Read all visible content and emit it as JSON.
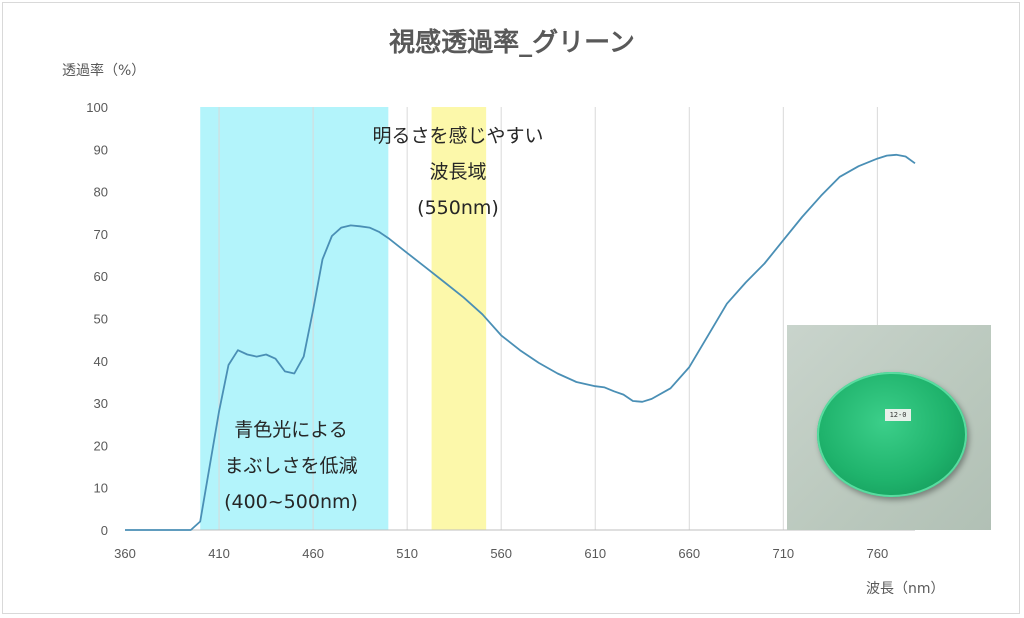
{
  "chart_data": {
    "type": "line",
    "title": "視感透過率_グリーン",
    "ylabel": "透過率（%）",
    "xlabel": "波長（nm）",
    "xlim": [
      360,
      780
    ],
    "ylim": [
      0,
      100
    ],
    "x_ticks": [
      360,
      410,
      460,
      510,
      560,
      610,
      660,
      710,
      760
    ],
    "y_ticks": [
      0,
      10,
      20,
      30,
      40,
      50,
      60,
      70,
      80,
      90,
      100
    ],
    "grid": "vertical",
    "series": [
      {
        "color": "#4a8fb5",
        "x": [
          360,
          370,
          380,
          390,
          395,
          400,
          405,
          410,
          415,
          420,
          425,
          430,
          435,
          440,
          445,
          450,
          455,
          460,
          465,
          470,
          475,
          480,
          485,
          490,
          495,
          500,
          510,
          520,
          530,
          540,
          550,
          560,
          570,
          580,
          590,
          600,
          610,
          615,
          620,
          625,
          630,
          635,
          640,
          650,
          660,
          670,
          680,
          690,
          700,
          710,
          720,
          730,
          740,
          750,
          760,
          765,
          770,
          775,
          780
        ],
        "y": [
          0,
          0,
          0,
          0,
          0,
          2,
          15,
          28,
          39,
          42.5,
          41.5,
          41,
          41.5,
          40.5,
          37.5,
          37,
          41,
          52,
          64,
          69.5,
          71.5,
          72,
          71.8,
          71.5,
          70.5,
          69,
          65.5,
          62,
          58.5,
          55,
          51,
          46,
          42.5,
          39.5,
          37,
          35,
          34,
          33.7,
          32.8,
          32,
          30.5,
          30.3,
          31,
          33.5,
          38.5,
          46,
          53.5,
          58.5,
          63,
          68.5,
          74,
          79,
          83.5,
          86,
          87.8,
          88.5,
          88.7,
          88.3,
          86.7
        ]
      }
    ],
    "bands": [
      {
        "from": 400,
        "to": 500,
        "color": "#b3f4fb"
      },
      {
        "from": 523,
        "to": 552,
        "color": "#fcf8aa"
      }
    ],
    "annotations": [
      {
        "lines": [
          "明るさを感じやすい",
          "波長域",
          "(550nm)"
        ]
      },
      {
        "lines": [
          "青色光による",
          "まぶしさを低減",
          "(400~500nm)"
        ]
      }
    ]
  },
  "photo": {
    "label": "12-0"
  }
}
